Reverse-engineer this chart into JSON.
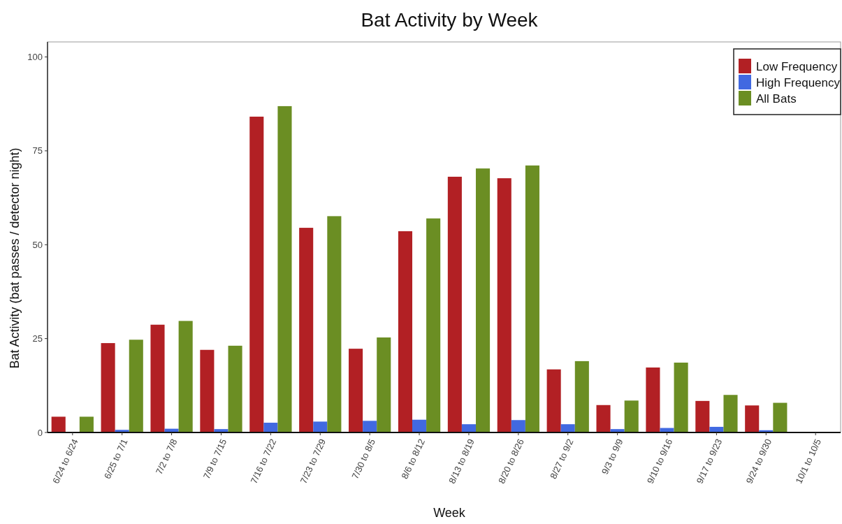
{
  "chart_data": {
    "type": "bar",
    "title": "Bat Activity by Week",
    "xlabel": "Week",
    "ylabel": "Bat Activity (bat passes / detector night)",
    "categories": [
      "6/24 to 6/24",
      "6/25 to 7/1",
      "7/2 to 7/8",
      "7/9 to 7/15",
      "7/16 to 7/22",
      "7/23 to 7/29",
      "7/30 to 8/5",
      "8/6 to 8/12",
      "8/13 to 8/19",
      "8/20 to 8/26",
      "8/27 to 9/2",
      "9/3 to 9/9",
      "9/10 to 9/16",
      "9/17 to 9/23",
      "9/24 to 9/30",
      "10/1 to 10/5"
    ],
    "series": [
      {
        "name": "Low Frequency",
        "color": "#b22024",
        "values": [
          4.2,
          23.8,
          28.7,
          22.0,
          84.1,
          54.5,
          22.3,
          53.6,
          68.1,
          67.7,
          16.8,
          7.3,
          17.3,
          8.4,
          7.2,
          0
        ]
      },
      {
        "name": "High Frequency",
        "color": "#4169e1",
        "values": [
          0,
          0.7,
          1.0,
          0.9,
          2.6,
          2.9,
          3.1,
          3.4,
          2.2,
          3.3,
          2.2,
          0.9,
          1.2,
          1.5,
          0.6,
          0
        ]
      },
      {
        "name": "All Bats",
        "color": "#6b8e23",
        "values": [
          4.2,
          24.7,
          29.7,
          23.1,
          86.9,
          57.6,
          25.3,
          57.0,
          70.3,
          71.1,
          19.0,
          8.5,
          18.6,
          10.0,
          7.9,
          0
        ]
      }
    ],
    "ylim": [
      0,
      104
    ],
    "yticks": [
      0,
      25,
      50,
      75,
      100
    ],
    "grid": false,
    "legend": "top right"
  }
}
